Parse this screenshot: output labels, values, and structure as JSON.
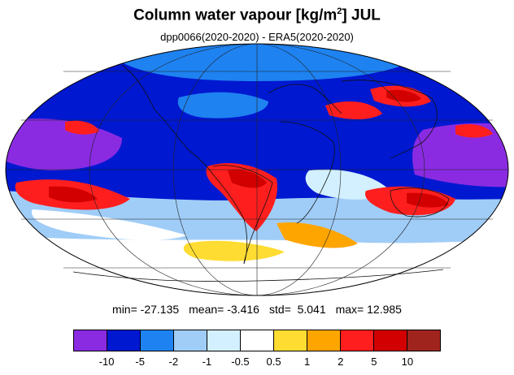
{
  "title": {
    "main": "Column water vapour [kg/m",
    "sup": "2",
    "after": "] JUL"
  },
  "subtitle": "dpp0066(2020-2020) - ERA5(2020-2020)",
  "stats": {
    "min": "min= -27.135",
    "mean": "mean= -3.416",
    "std": "std=  5.041",
    "max": "max= 12.985"
  },
  "colorbar": {
    "colors": [
      "#8a2be2",
      "#0018d0",
      "#1e82f0",
      "#a0cdf7",
      "#d2f0ff",
      "#ffffff",
      "#ffdc32",
      "#ffa500",
      "#ff1e1e",
      "#d20000",
      "#a0241e"
    ],
    "ticks": [
      "-10",
      "-5",
      "-2",
      "-1",
      "-0.5",
      "0.5",
      "1",
      "2",
      "5",
      "10"
    ]
  },
  "map": {
    "projection": "Mollweide",
    "ocean_color": "#ffffff",
    "colors": {
      "purple": "#8a2be2",
      "darkblue": "#0018d0",
      "blue": "#1e82f0",
      "lightblue": "#a0cdf7",
      "paleblue": "#d2f0ff",
      "yellow": "#ffdc32",
      "orange": "#ffa500",
      "red": "#ff1e1e",
      "darkred": "#d20000"
    }
  }
}
